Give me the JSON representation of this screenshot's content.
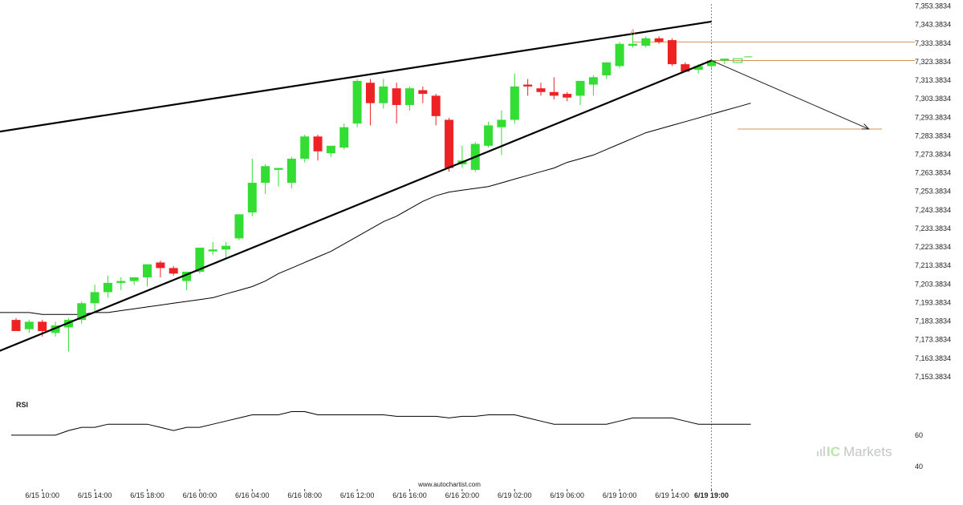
{
  "chart_data": {
    "type": "candlestick",
    "price_axis": {
      "ticks": [
        "7,353.3834",
        "7,343.3834",
        "7,333.3834",
        "7,323.3834",
        "7,313.3834",
        "7,303.3834",
        "7,293.3834",
        "7,283.3834",
        "7,273.3834",
        "7,263.3834",
        "7,253.3834",
        "7,243.3834",
        "7,233.3834",
        "7,223.3834",
        "7,213.3834",
        "7,203.3834",
        "7,193.3834",
        "7,183.3834",
        "7,173.3834",
        "7,163.3834",
        "7,153.3834"
      ],
      "ylim": [
        7149.0,
        7354.5
      ]
    },
    "time_axis": {
      "ticks": [
        {
          "index": 2,
          "label": "6/15 10:00"
        },
        {
          "index": 6,
          "label": "6/15 14:00"
        },
        {
          "index": 10,
          "label": "6/15 18:00"
        },
        {
          "index": 14,
          "label": "6/16 00:00"
        },
        {
          "index": 18,
          "label": "6/16 04:00"
        },
        {
          "index": 22,
          "label": "6/16 08:00"
        },
        {
          "index": 26,
          "label": "6/16 12:00"
        },
        {
          "index": 30,
          "label": "6/16 16:00"
        },
        {
          "index": 34,
          "label": "6/16 20:00"
        },
        {
          "index": 38,
          "label": "6/19 02:00"
        },
        {
          "index": 42,
          "label": "6/19 06:00"
        },
        {
          "index": 46,
          "label": "6/19 10:00"
        },
        {
          "index": 50,
          "label": "6/19 14:00"
        },
        {
          "index": 53,
          "label": "6/19 19:00",
          "bold": true
        }
      ]
    },
    "candles": [
      {
        "o": 7184,
        "h": 7185,
        "l": 7179,
        "c": 7178
      },
      {
        "o": 7179,
        "h": 7184,
        "l": 7177,
        "c": 7183
      },
      {
        "o": 7183,
        "h": 7184,
        "l": 7175,
        "c": 7178
      },
      {
        "o": 7177,
        "h": 7183,
        "l": 7175,
        "c": 7181
      },
      {
        "o": 7180,
        "h": 7185,
        "l": 7167,
        "c": 7184
      },
      {
        "o": 7184,
        "h": 7194,
        "l": 7182,
        "c": 7193
      },
      {
        "o": 7193,
        "h": 7203,
        "l": 7189,
        "c": 7199
      },
      {
        "o": 7199,
        "h": 7208,
        "l": 7196,
        "c": 7204
      },
      {
        "o": 7204,
        "h": 7207,
        "l": 7200,
        "c": 7205
      },
      {
        "o": 7205,
        "h": 7207,
        "l": 7203,
        "c": 7207
      },
      {
        "o": 7207,
        "h": 7214,
        "l": 7202,
        "c": 7214
      },
      {
        "o": 7215,
        "h": 7216,
        "l": 7207,
        "c": 7212
      },
      {
        "o": 7212,
        "h": 7213,
        "l": 7208,
        "c": 7209
      },
      {
        "o": 7205,
        "h": 7210,
        "l": 7200,
        "c": 7210
      },
      {
        "o": 7210,
        "h": 7223,
        "l": 7209,
        "c": 7223
      },
      {
        "o": 7221,
        "h": 7226,
        "l": 7219,
        "c": 7222
      },
      {
        "o": 7222,
        "h": 7226,
        "l": 7217,
        "c": 7224
      },
      {
        "o": 7228,
        "h": 7241,
        "l": 7227,
        "c": 7241
      },
      {
        "o": 7242,
        "h": 7271,
        "l": 7240,
        "c": 7258
      },
      {
        "o": 7258,
        "h": 7268,
        "l": 7252,
        "c": 7267
      },
      {
        "o": 7265,
        "h": 7266,
        "l": 7256,
        "c": 7266
      },
      {
        "o": 7258,
        "h": 7272,
        "l": 7255,
        "c": 7271
      },
      {
        "o": 7271,
        "h": 7284,
        "l": 7269,
        "c": 7283
      },
      {
        "o": 7283,
        "h": 7284,
        "l": 7270,
        "c": 7275
      },
      {
        "o": 7274,
        "h": 7278,
        "l": 7272,
        "c": 7278
      },
      {
        "o": 7277,
        "h": 7290,
        "l": 7276,
        "c": 7288
      },
      {
        "o": 7290,
        "h": 7314,
        "l": 7288,
        "c": 7313
      },
      {
        "o": 7312,
        "h": 7314,
        "l": 7289,
        "c": 7301
      },
      {
        "o": 7301,
        "h": 7314,
        "l": 7298,
        "c": 7310
      },
      {
        "o": 7309,
        "h": 7312,
        "l": 7290,
        "c": 7300
      },
      {
        "o": 7300,
        "h": 7310,
        "l": 7297,
        "c": 7309
      },
      {
        "o": 7308,
        "h": 7310,
        "l": 7301,
        "c": 7306
      },
      {
        "o": 7305,
        "h": 7306,
        "l": 7289,
        "c": 7294
      },
      {
        "o": 7292,
        "h": 7293,
        "l": 7264,
        "c": 7266
      },
      {
        "o": 7268,
        "h": 7278,
        "l": 7266,
        "c": 7270
      },
      {
        "o": 7265,
        "h": 7280,
        "l": 7264,
        "c": 7279
      },
      {
        "o": 7278,
        "h": 7291,
        "l": 7277,
        "c": 7289
      },
      {
        "o": 7288,
        "h": 7297,
        "l": 7273,
        "c": 7292
      },
      {
        "o": 7292,
        "h": 7317,
        "l": 7290,
        "c": 7310
      },
      {
        "o": 7311,
        "h": 7314,
        "l": 7305,
        "c": 7310
      },
      {
        "o": 7309,
        "h": 7312,
        "l": 7305,
        "c": 7307
      },
      {
        "o": 7307,
        "h": 7315,
        "l": 7303,
        "c": 7305
      },
      {
        "o": 7306,
        "h": 7307,
        "l": 7302,
        "c": 7304
      },
      {
        "o": 7305,
        "h": 7313,
        "l": 7300,
        "c": 7313
      },
      {
        "o": 7311,
        "h": 7316,
        "l": 7305,
        "c": 7315
      },
      {
        "o": 7316,
        "h": 7323,
        "l": 7314,
        "c": 7323
      },
      {
        "o": 7321,
        "h": 7334,
        "l": 7320,
        "c": 7333
      },
      {
        "o": 7332,
        "h": 7338,
        "l": 7331,
        "c": 7333
      },
      {
        "o": 7332,
        "h": 7337,
        "l": 7331,
        "c": 7336
      },
      {
        "o": 7336,
        "h": 7337,
        "l": 7333,
        "c": 7334
      },
      {
        "o": 7335,
        "h": 7336,
        "l": 7321,
        "c": 7322
      },
      {
        "o": 7322,
        "h": 7323,
        "l": 7318,
        "c": 7318
      },
      {
        "o": 7319,
        "h": 7322,
        "l": 7317,
        "c": 7321
      },
      {
        "o": 7321,
        "h": 7325,
        "l": 7320,
        "c": 7324
      },
      {
        "o": 7324,
        "h": 7325,
        "l": 7322,
        "c": 7325
      }
    ],
    "forecast_candle": {
      "index": 55,
      "o": 7323,
      "c": 7325
    },
    "moving_average": [
      7188,
      7188,
      7187,
      7187,
      7187,
      7187,
      7188,
      7188,
      7189,
      7190,
      7191,
      7192,
      7193,
      7194,
      7195,
      7196,
      7198,
      7200,
      7202,
      7205,
      7209,
      7212,
      7215,
      7218,
      7221,
      7225,
      7229,
      7233,
      7237,
      7240,
      7244,
      7248,
      7251,
      7253,
      7254,
      7255,
      7256,
      7258,
      7260,
      7262,
      7264,
      7266,
      7269,
      7271,
      7273,
      7276,
      7279,
      7282,
      7285,
      7287,
      7289,
      7291,
      7293,
      7295,
      7297,
      7299,
      7301
    ],
    "upper_trendline": {
      "x0": -5.5,
      "y0": 7281,
      "x1": 53,
      "y1": 7345
    },
    "lower_trendline": {
      "x0": -5.5,
      "y0": 7155,
      "x1": 53,
      "y1": 7324
    },
    "resistance_level": {
      "x0": 47,
      "x1": 68.5,
      "y": 7334
    },
    "support_level": {
      "x0": 53,
      "x1": 68.5,
      "y": 7324
    },
    "target_level": {
      "x0": 55,
      "x1": 66,
      "y": 7287
    },
    "forecast_arrow": {
      "x0": 53,
      "y0": 7324,
      "x1": 65,
      "y1": 7287
    },
    "current_time_index": 53,
    "marker_label": "A",
    "marker": {
      "index": 47,
      "price": 7338
    },
    "rsi": {
      "label": "RSI",
      "ticks": [
        "60",
        "40"
      ],
      "ylim": [
        36,
        87
      ],
      "tick_values": [
        60,
        40
      ],
      "values": [
        60,
        60,
        60,
        60,
        63,
        65,
        65,
        67,
        67,
        67,
        67,
        65,
        63,
        65,
        65,
        67,
        69,
        71,
        73,
        73,
        73,
        75,
        75,
        73,
        73,
        73,
        73,
        73,
        73,
        72,
        72,
        72,
        72,
        71,
        72,
        72,
        73,
        73,
        73,
        71,
        69,
        67,
        67,
        67,
        67,
        67,
        69,
        71,
        71,
        71,
        71,
        69,
        67,
        67,
        67,
        67,
        67
      ]
    },
    "colors": {
      "bull": "#33dd33",
      "bear": "#ee2222",
      "level": "#d4925a",
      "ma": "#000000",
      "trendline": "#000000"
    },
    "watermark": "www.autochartist.com",
    "brand_logo": {
      "ic": "IC",
      "markets": "Markets"
    }
  }
}
